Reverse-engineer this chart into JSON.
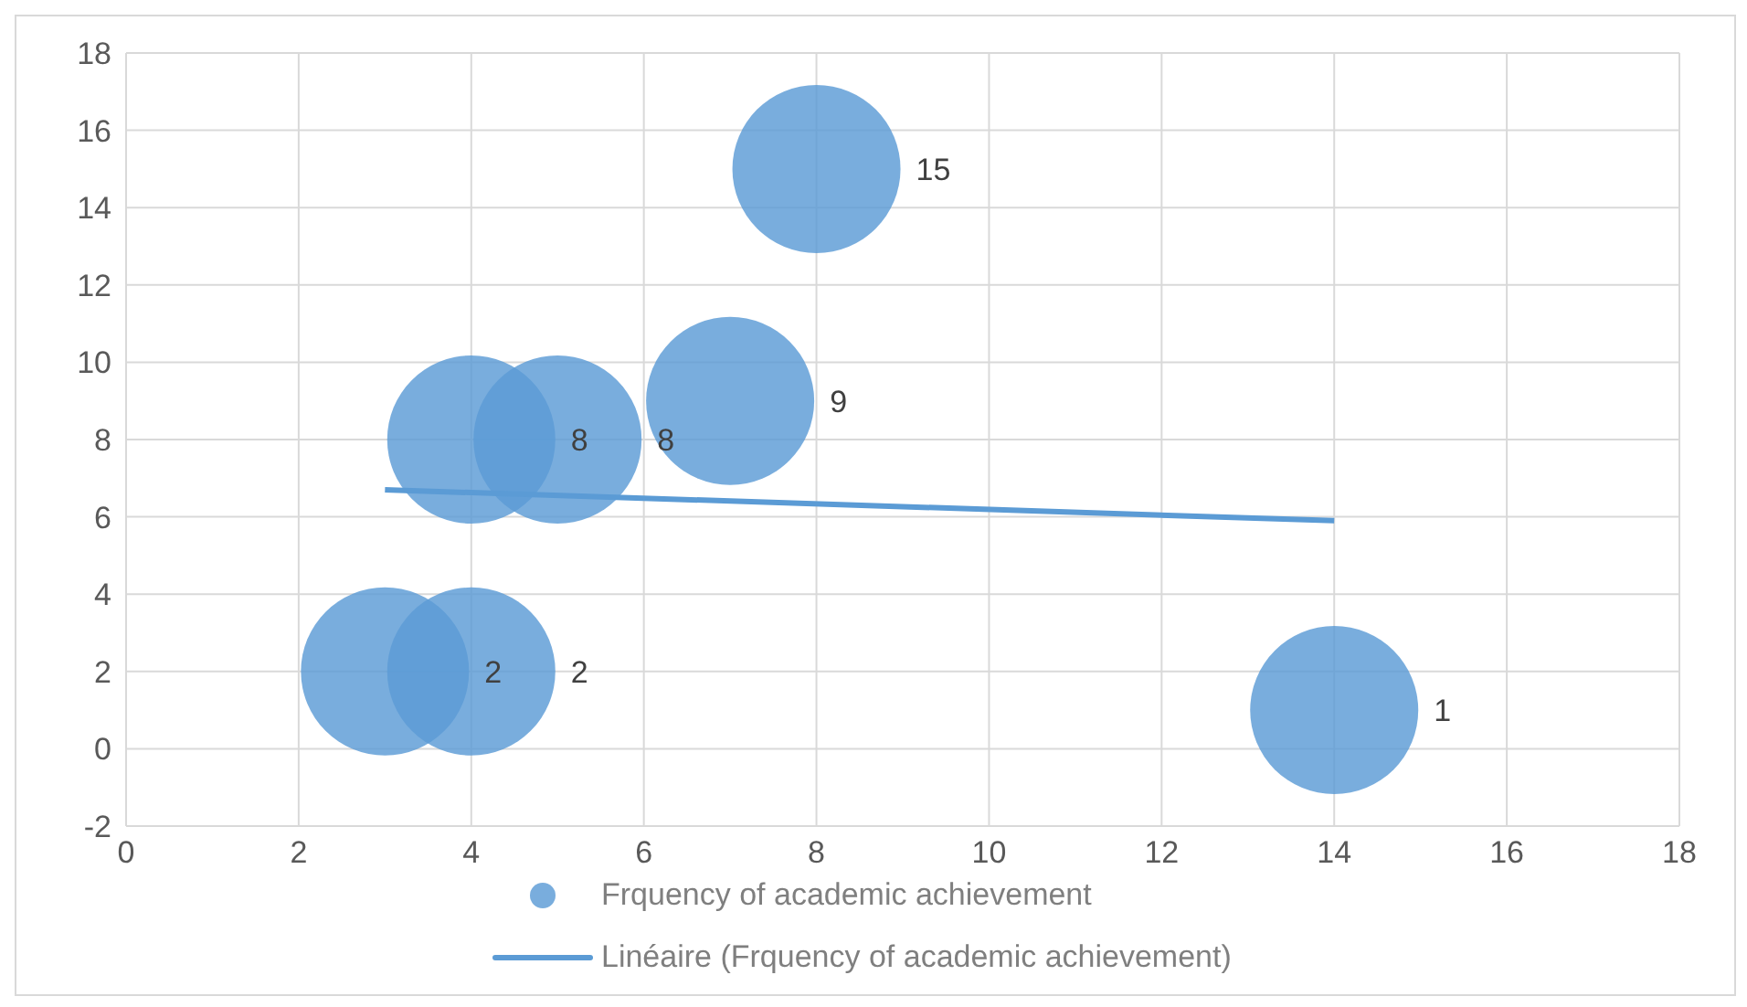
{
  "chart_data": {
    "type": "bubble",
    "x": [
      3,
      4,
      4,
      5,
      7,
      8,
      14
    ],
    "series": [
      {
        "name": "Frquency of academic achievement",
        "color": "#5b9bd5",
        "values": [
          2,
          2,
          8,
          8,
          9,
          15,
          1
        ],
        "sizes": [
          1,
          1,
          1,
          1,
          1,
          1,
          1
        ],
        "value_labels": [
          "2",
          "2",
          "8",
          "8",
          "9",
          "15",
          "1"
        ]
      },
      {
        "name": "Linéaire (Frquency of academic achievement)",
        "type": "line",
        "color": "#5b9bd5",
        "x": [
          3,
          14
        ],
        "values": [
          6.7,
          5.9
        ],
        "marker": "none"
      }
    ],
    "xlim": [
      0,
      18
    ],
    "xticks": [
      0,
      2,
      4,
      6,
      8,
      10,
      12,
      14,
      16,
      18
    ],
    "ylim": [
      -2,
      18
    ],
    "yticks": [
      -2,
      0,
      2,
      4,
      6,
      8,
      10,
      12,
      14,
      16,
      18
    ],
    "grid": true,
    "legend": "bottom",
    "marker": "circle",
    "line_style": "solid"
  }
}
